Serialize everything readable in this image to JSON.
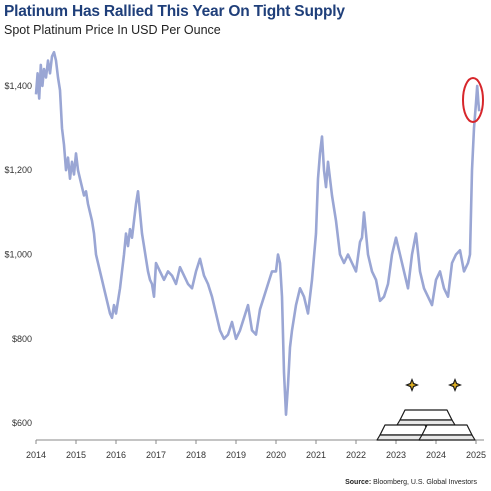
{
  "colors": {
    "line": "#9aa6d4",
    "title": "#1f3f7a",
    "highlight": "#d7262b",
    "axis": "#888888"
  },
  "source": {
    "label": "Source:",
    "text": "Bloomberg, U.S. Global Investors"
  },
  "chart_data": {
    "type": "line",
    "title": "Platinum Has Rallied This Year On Tight Supply",
    "subtitle": "Spot Platinum Price In USD Per Ounce",
    "xlabel": "",
    "ylabel": "",
    "xlim": [
      2014.0,
      2025.2
    ],
    "ylim": [
      560,
      1490
    ],
    "y_ticks": [
      {
        "value": 600,
        "label": "$600"
      },
      {
        "value": 800,
        "label": "$800"
      },
      {
        "value": 1000,
        "label": "$1,000"
      },
      {
        "value": 1200,
        "label": "$1,200"
      },
      {
        "value": 1400,
        "label": "$1,400"
      }
    ],
    "x_ticks": [
      {
        "value": 2014,
        "label": "2014"
      },
      {
        "value": 2015,
        "label": "2015"
      },
      {
        "value": 2016,
        "label": "2016"
      },
      {
        "value": 2017,
        "label": "2017"
      },
      {
        "value": 2018,
        "label": "2018"
      },
      {
        "value": 2019,
        "label": "2019"
      },
      {
        "value": 2020,
        "label": "2020"
      },
      {
        "value": 2021,
        "label": "2021"
      },
      {
        "value": 2022,
        "label": "2022"
      },
      {
        "value": 2023,
        "label": "2023"
      },
      {
        "value": 2024,
        "label": "2024"
      },
      {
        "value": 2025,
        "label": "2025"
      }
    ],
    "grid": false,
    "series": [
      {
        "x": [
          2014.0,
          2014.04,
          2014.08,
          2014.12,
          2014.16,
          2014.2,
          2014.25,
          2014.3,
          2014.35,
          2014.4,
          2014.45,
          2014.5,
          2014.55,
          2014.6,
          2014.65,
          2014.7,
          2014.75,
          2014.8,
          2014.85,
          2014.9,
          2014.95,
          2015.0,
          2015.05,
          2015.1,
          2015.15,
          2015.2,
          2015.25,
          2015.3,
          2015.35,
          2015.4,
          2015.45,
          2015.5,
          2015.55,
          2015.6,
          2015.65,
          2015.7,
          2015.75,
          2015.8,
          2015.85,
          2015.9,
          2015.95,
          2016.0,
          2016.05,
          2016.1,
          2016.15,
          2016.2,
          2016.25,
          2016.3,
          2016.35,
          2016.4,
          2016.45,
          2016.5,
          2016.55,
          2016.6,
          2016.65,
          2016.7,
          2016.75,
          2016.8,
          2016.85,
          2016.9,
          2016.95,
          2017.0,
          2017.1,
          2017.2,
          2017.3,
          2017.4,
          2017.5,
          2017.6,
          2017.7,
          2017.8,
          2017.9,
          2018.0,
          2018.1,
          2018.2,
          2018.3,
          2018.4,
          2018.5,
          2018.6,
          2018.7,
          2018.8,
          2018.9,
          2019.0,
          2019.1,
          2019.2,
          2019.3,
          2019.4,
          2019.5,
          2019.6,
          2019.7,
          2019.8,
          2019.9,
          2020.0,
          2020.05,
          2020.1,
          2020.15,
          2020.2,
          2020.25,
          2020.3,
          2020.35,
          2020.4,
          2020.5,
          2020.6,
          2020.7,
          2020.8,
          2020.9,
          2021.0,
          2021.05,
          2021.1,
          2021.15,
          2021.2,
          2021.25,
          2021.3,
          2021.35,
          2021.4,
          2021.5,
          2021.6,
          2021.7,
          2021.8,
          2021.9,
          2022.0,
          2022.1,
          2022.15,
          2022.2,
          2022.3,
          2022.4,
          2022.5,
          2022.6,
          2022.7,
          2022.8,
          2022.9,
          2023.0,
          2023.1,
          2023.2,
          2023.3,
          2023.4,
          2023.5,
          2023.6,
          2023.7,
          2023.8,
          2023.9,
          2024.0,
          2024.1,
          2024.2,
          2024.3,
          2024.4,
          2024.5,
          2024.6,
          2024.7,
          2024.8,
          2024.85,
          2024.9,
          2024.95,
          2025.0,
          2025.03,
          2025.06,
          2025.08
        ],
        "y": [
          1380,
          1430,
          1370,
          1450,
          1400,
          1440,
          1420,
          1460,
          1430,
          1470,
          1480,
          1460,
          1420,
          1390,
          1300,
          1260,
          1200,
          1230,
          1180,
          1220,
          1190,
          1240,
          1200,
          1180,
          1160,
          1140,
          1150,
          1120,
          1100,
          1080,
          1050,
          1000,
          980,
          960,
          940,
          920,
          900,
          880,
          860,
          850,
          880,
          860,
          890,
          920,
          960,
          1000,
          1050,
          1020,
          1060,
          1040,
          1080,
          1120,
          1150,
          1100,
          1050,
          1020,
          990,
          960,
          940,
          930,
          900,
          980,
          960,
          940,
          960,
          950,
          930,
          970,
          950,
          930,
          920,
          960,
          990,
          950,
          930,
          900,
          860,
          820,
          800,
          810,
          840,
          800,
          820,
          850,
          880,
          820,
          810,
          870,
          900,
          930,
          960,
          960,
          1000,
          980,
          900,
          720,
          620,
          690,
          780,
          820,
          880,
          920,
          900,
          860,
          940,
          1050,
          1180,
          1240,
          1280,
          1200,
          1160,
          1220,
          1180,
          1140,
          1080,
          1000,
          980,
          1000,
          980,
          960,
          1030,
          1040,
          1100,
          1000,
          960,
          940,
          890,
          900,
          930,
          1000,
          1040,
          1000,
          960,
          920,
          1000,
          1050,
          960,
          920,
          900,
          880,
          940,
          960,
          920,
          900,
          980,
          1000,
          1010,
          960,
          980,
          1000,
          1200,
          1300,
          1360,
          1400,
          1360,
          1340
        ]
      }
    ]
  }
}
